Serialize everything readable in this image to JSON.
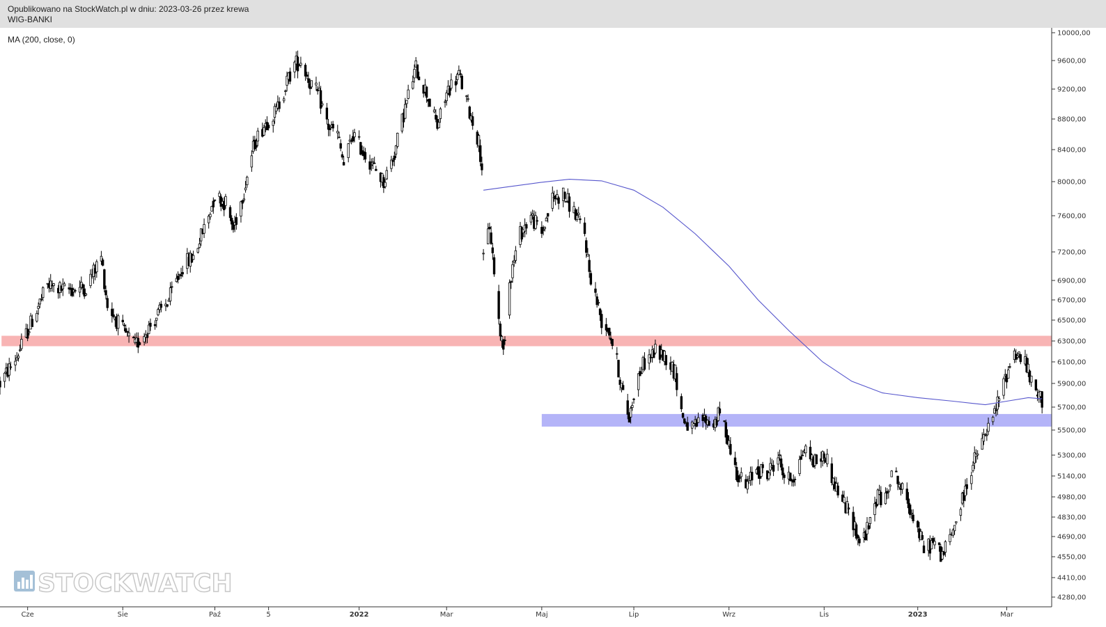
{
  "header": {
    "published": "Opublikowano na StockWatch.pl w dniu: 2023-03-26 przez krewa",
    "ticker": "WIG-BANKI"
  },
  "indicator": {
    "label": "MA (200, close, 0)"
  },
  "watermark": {
    "text": "STOCKWATCH",
    "icon": "bar-chart-icon"
  },
  "chart_data": {
    "type": "candlestick",
    "ylim": [
      4200,
      10050
    ],
    "y_ticks": [
      {
        "value": 10000,
        "label": "10000,00"
      },
      {
        "value": 9600,
        "label": "9600,00"
      },
      {
        "value": 9200,
        "label": "9200,00"
      },
      {
        "value": 8800,
        "label": "8800,00"
      },
      {
        "value": 8400,
        "label": "8400,00"
      },
      {
        "value": 8000,
        "label": "8000,00"
      },
      {
        "value": 7600,
        "label": "7600,00"
      },
      {
        "value": 7200,
        "label": "7200,00"
      },
      {
        "value": 6900,
        "label": "6900,00"
      },
      {
        "value": 6700,
        "label": "6700,00"
      },
      {
        "value": 6500,
        "label": "6500,00"
      },
      {
        "value": 6300,
        "label": "6300,00"
      },
      {
        "value": 6100,
        "label": "6100,00"
      },
      {
        "value": 5900,
        "label": "5900,00"
      },
      {
        "value": 5700,
        "label": "5700,00"
      },
      {
        "value": 5500,
        "label": "5500,00"
      },
      {
        "value": 5300,
        "label": "5300,00"
      },
      {
        "value": 5140,
        "label": "5140,00"
      },
      {
        "value": 4980,
        "label": "4980,00"
      },
      {
        "value": 4830,
        "label": "4830,00"
      },
      {
        "value": 4690,
        "label": "4690,00"
      },
      {
        "value": 4550,
        "label": "4550,00"
      },
      {
        "value": 4410,
        "label": "4410,00"
      },
      {
        "value": 4280,
        "label": "4280,00"
      }
    ],
    "x_ticks": [
      {
        "label": "Cze",
        "date": "2021-06-01",
        "bold": false
      },
      {
        "label": "Sie",
        "date": "2021-08-02",
        "bold": false
      },
      {
        "label": "Paź",
        "date": "2021-10-01",
        "bold": false
      },
      {
        "label": "5",
        "date": "2021-11-05",
        "bold": false
      },
      {
        "label": "2022",
        "date": "2022-01-03",
        "bold": true
      },
      {
        "label": "Mar",
        "date": "2022-03-01",
        "bold": false
      },
      {
        "label": "Maj",
        "date": "2022-05-02",
        "bold": false
      },
      {
        "label": "Lip",
        "date": "2022-07-01",
        "bold": false
      },
      {
        "label": "Wrz",
        "date": "2022-09-01",
        "bold": false
      },
      {
        "label": "Lis",
        "date": "2022-11-02",
        "bold": false
      },
      {
        "label": "2023",
        "date": "2023-01-02",
        "bold": true
      },
      {
        "label": "Mar",
        "date": "2023-03-01",
        "bold": false
      }
    ],
    "zones": [
      {
        "name": "resistance",
        "from_date": "2021-05-15",
        "to_date": "2023-03-24",
        "low": 6250,
        "high": 6350,
        "color": "#f8b4b4"
      },
      {
        "name": "support",
        "from_date": "2022-05-02",
        "to_date": "2023-03-24",
        "low": 5530,
        "high": 5640,
        "color": "#b4b4f8"
      }
    ],
    "price_path": [
      [
        "2021-05-14",
        5900
      ],
      [
        "2021-05-25",
        6150
      ],
      [
        "2021-06-04",
        6500
      ],
      [
        "2021-06-14",
        6850
      ],
      [
        "2021-06-25",
        6800
      ],
      [
        "2021-07-09",
        6830
      ],
      [
        "2021-07-19",
        7150
      ],
      [
        "2021-07-23",
        6650
      ],
      [
        "2021-08-02",
        6400
      ],
      [
        "2021-08-10",
        6250
      ],
      [
        "2021-08-20",
        6450
      ],
      [
        "2021-09-01",
        6700
      ],
      [
        "2021-09-10",
        7050
      ],
      [
        "2021-09-17",
        7150
      ],
      [
        "2021-09-27",
        7600
      ],
      [
        "2021-10-01",
        7850
      ],
      [
        "2021-10-08",
        7750
      ],
      [
        "2021-10-13",
        7450
      ],
      [
        "2021-10-20",
        7900
      ],
      [
        "2021-10-27",
        8500
      ],
      [
        "2021-11-03",
        8750
      ],
      [
        "2021-11-10",
        8900
      ],
      [
        "2021-11-17",
        9300
      ],
      [
        "2021-11-22",
        9550
      ],
      [
        "2021-11-26",
        9600
      ],
      [
        "2021-12-02",
        9300
      ],
      [
        "2021-12-08",
        9100
      ],
      [
        "2021-12-14",
        8700
      ],
      [
        "2021-12-20",
        8600
      ],
      [
        "2021-12-24",
        8200
      ],
      [
        "2021-12-30",
        8600
      ],
      [
        "2022-01-05",
        8400
      ],
      [
        "2022-01-12",
        8200
      ],
      [
        "2022-01-19",
        8000
      ],
      [
        "2022-01-26",
        8350
      ],
      [
        "2022-02-02",
        8950
      ],
      [
        "2022-02-09",
        9500
      ],
      [
        "2022-02-16",
        9150
      ],
      [
        "2022-02-23",
        8700
      ],
      [
        "2022-03-02",
        9200
      ],
      [
        "2022-03-09",
        9400
      ],
      [
        "2022-03-16",
        8900
      ],
      [
        "2022-03-22",
        8500
      ],
      [
        "2022-03-24",
        8200
      ],
      [
        "2022-03-25",
        7100
      ],
      [
        "2022-03-29",
        7500
      ],
      [
        "2022-04-01",
        7000
      ],
      [
        "2022-04-04",
        6500
      ],
      [
        "2022-04-07",
        6200
      ],
      [
        "2022-04-11",
        6900
      ],
      [
        "2022-04-18",
        7400
      ],
      [
        "2022-04-25",
        7600
      ],
      [
        "2022-05-02",
        7400
      ],
      [
        "2022-05-09",
        7800
      ],
      [
        "2022-05-16",
        7850
      ],
      [
        "2022-05-23",
        7650
      ],
      [
        "2022-05-30",
        7400
      ],
      [
        "2022-06-02",
        7000
      ],
      [
        "2022-06-06",
        6750
      ],
      [
        "2022-06-10",
        6500
      ],
      [
        "2022-06-15",
        6400
      ],
      [
        "2022-06-20",
        6100
      ],
      [
        "2022-06-24",
        5800
      ],
      [
        "2022-06-28",
        5600
      ],
      [
        "2022-07-02",
        5900
      ],
      [
        "2022-07-08",
        6100
      ],
      [
        "2022-07-15",
        6200
      ],
      [
        "2022-07-22",
        6150
      ],
      [
        "2022-07-28",
        6000
      ],
      [
        "2022-08-02",
        5600
      ],
      [
        "2022-08-08",
        5500
      ],
      [
        "2022-08-15",
        5600
      ],
      [
        "2022-08-22",
        5550
      ],
      [
        "2022-08-26",
        5650
      ],
      [
        "2022-08-31",
        5450
      ],
      [
        "2022-09-05",
        5200
      ],
      [
        "2022-09-12",
        5050
      ],
      [
        "2022-09-19",
        5200
      ],
      [
        "2022-09-26",
        5150
      ],
      [
        "2022-10-03",
        5300
      ],
      [
        "2022-10-08",
        5100
      ],
      [
        "2022-10-14",
        5150
      ],
      [
        "2022-10-20",
        5350
      ],
      [
        "2022-10-27",
        5250
      ],
      [
        "2022-11-03",
        5300
      ],
      [
        "2022-11-08",
        5100
      ],
      [
        "2022-11-14",
        4950
      ],
      [
        "2022-11-21",
        4800
      ],
      [
        "2022-11-25",
        4650
      ],
      [
        "2022-12-01",
        4750
      ],
      [
        "2022-12-07",
        5000
      ],
      [
        "2022-12-12",
        4950
      ],
      [
        "2022-12-16",
        5200
      ],
      [
        "2022-12-22",
        5050
      ],
      [
        "2022-12-30",
        4850
      ],
      [
        "2023-01-06",
        4600
      ],
      [
        "2023-01-12",
        4650
      ],
      [
        "2023-01-18",
        4560
      ],
      [
        "2023-01-24",
        4700
      ],
      [
        "2023-01-31",
        4950
      ],
      [
        "2023-02-06",
        5200
      ],
      [
        "2023-02-13",
        5400
      ],
      [
        "2023-02-20",
        5600
      ],
      [
        "2023-02-27",
        5900
      ],
      [
        "2023-03-06",
        6200
      ],
      [
        "2023-03-13",
        6100
      ],
      [
        "2023-03-17",
        5900
      ],
      [
        "2023-03-21",
        5800
      ],
      [
        "2023-03-24",
        5760
      ]
    ],
    "ma200": [
      [
        "2022-03-25",
        7900
      ],
      [
        "2022-04-10",
        7940
      ],
      [
        "2022-05-01",
        7990
      ],
      [
        "2022-05-20",
        8030
      ],
      [
        "2022-06-10",
        8010
      ],
      [
        "2022-07-01",
        7900
      ],
      [
        "2022-07-20",
        7700
      ],
      [
        "2022-08-10",
        7400
      ],
      [
        "2022-09-01",
        7050
      ],
      [
        "2022-09-20",
        6700
      ],
      [
        "2022-10-10",
        6400
      ],
      [
        "2022-11-01",
        6100
      ],
      [
        "2022-11-20",
        5920
      ],
      [
        "2022-12-10",
        5820
      ],
      [
        "2023-01-02",
        5780
      ],
      [
        "2023-01-25",
        5750
      ],
      [
        "2023-02-15",
        5720
      ],
      [
        "2023-03-01",
        5750
      ],
      [
        "2023-03-15",
        5780
      ],
      [
        "2023-03-24",
        5770
      ]
    ]
  },
  "colors": {
    "header_bg": "#e0e0e0",
    "ma_line": "#5555cc",
    "candle": "#000000",
    "axis": "#333333"
  }
}
